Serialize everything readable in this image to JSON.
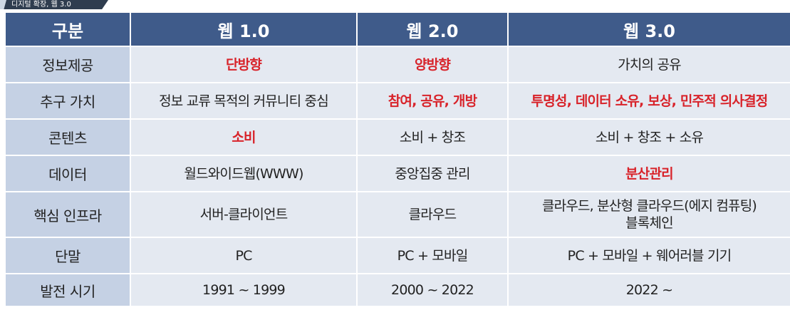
{
  "banner": {
    "title": "디지털 확장, 웹 3.0"
  },
  "colors": {
    "header_bg": "#3f5b8a",
    "label_bg": "#c5d1e4",
    "cell_bg": "#e4e9f1",
    "accent_text": "#d8232a"
  },
  "table": {
    "headers": [
      "구분",
      "웹 1.0",
      "웹 2.0",
      "웹 3.0"
    ],
    "rows": [
      {
        "label": "정보제공",
        "cells": [
          {
            "text": "단방향",
            "accent": true
          },
          {
            "text": "양방향",
            "accent": true
          },
          {
            "text": "가치의 공유",
            "accent": false
          }
        ]
      },
      {
        "label": "추구 가치",
        "cells": [
          {
            "text": "정보 교류 목적의 커뮤니티 중심",
            "accent": false
          },
          {
            "text": "참여, 공유, 개방",
            "accent": true
          },
          {
            "text": "투명성, 데이터 소유, 보상, 민주적 의사결정",
            "accent": true
          }
        ]
      },
      {
        "label": "콘텐츠",
        "cells": [
          {
            "text": "소비",
            "accent": true
          },
          {
            "text": "소비 + 창조",
            "accent": false
          },
          {
            "text": "소비 + 창조 + 소유",
            "accent": false
          }
        ]
      },
      {
        "label": "데이터",
        "cells": [
          {
            "text": "월드와이드웹(WWW)",
            "accent": false
          },
          {
            "text": "중앙집중 관리",
            "accent": false
          },
          {
            "text": "분산관리",
            "accent": true
          }
        ]
      },
      {
        "label": "핵심 인프라",
        "cells": [
          {
            "text": "서버-클라이언트",
            "accent": false
          },
          {
            "text": "클라우드",
            "accent": false
          },
          {
            "lines": [
              "클라우드, 분산형 클라우드(에지 컴퓨팅)",
              "블록체인"
            ],
            "accent": false
          }
        ]
      },
      {
        "label": "단말",
        "cells": [
          {
            "text": "PC",
            "accent": false
          },
          {
            "text": "PC + 모바일",
            "accent": false
          },
          {
            "text": "PC + 모바일 + 웨어러블 기기",
            "accent": false
          }
        ]
      },
      {
        "label": "발전 시기",
        "cells": [
          {
            "text": "1991 ~ 1999",
            "accent": false
          },
          {
            "text": "2000 ~ 2022",
            "accent": false
          },
          {
            "text": "2022 ~",
            "accent": false
          }
        ]
      }
    ]
  }
}
